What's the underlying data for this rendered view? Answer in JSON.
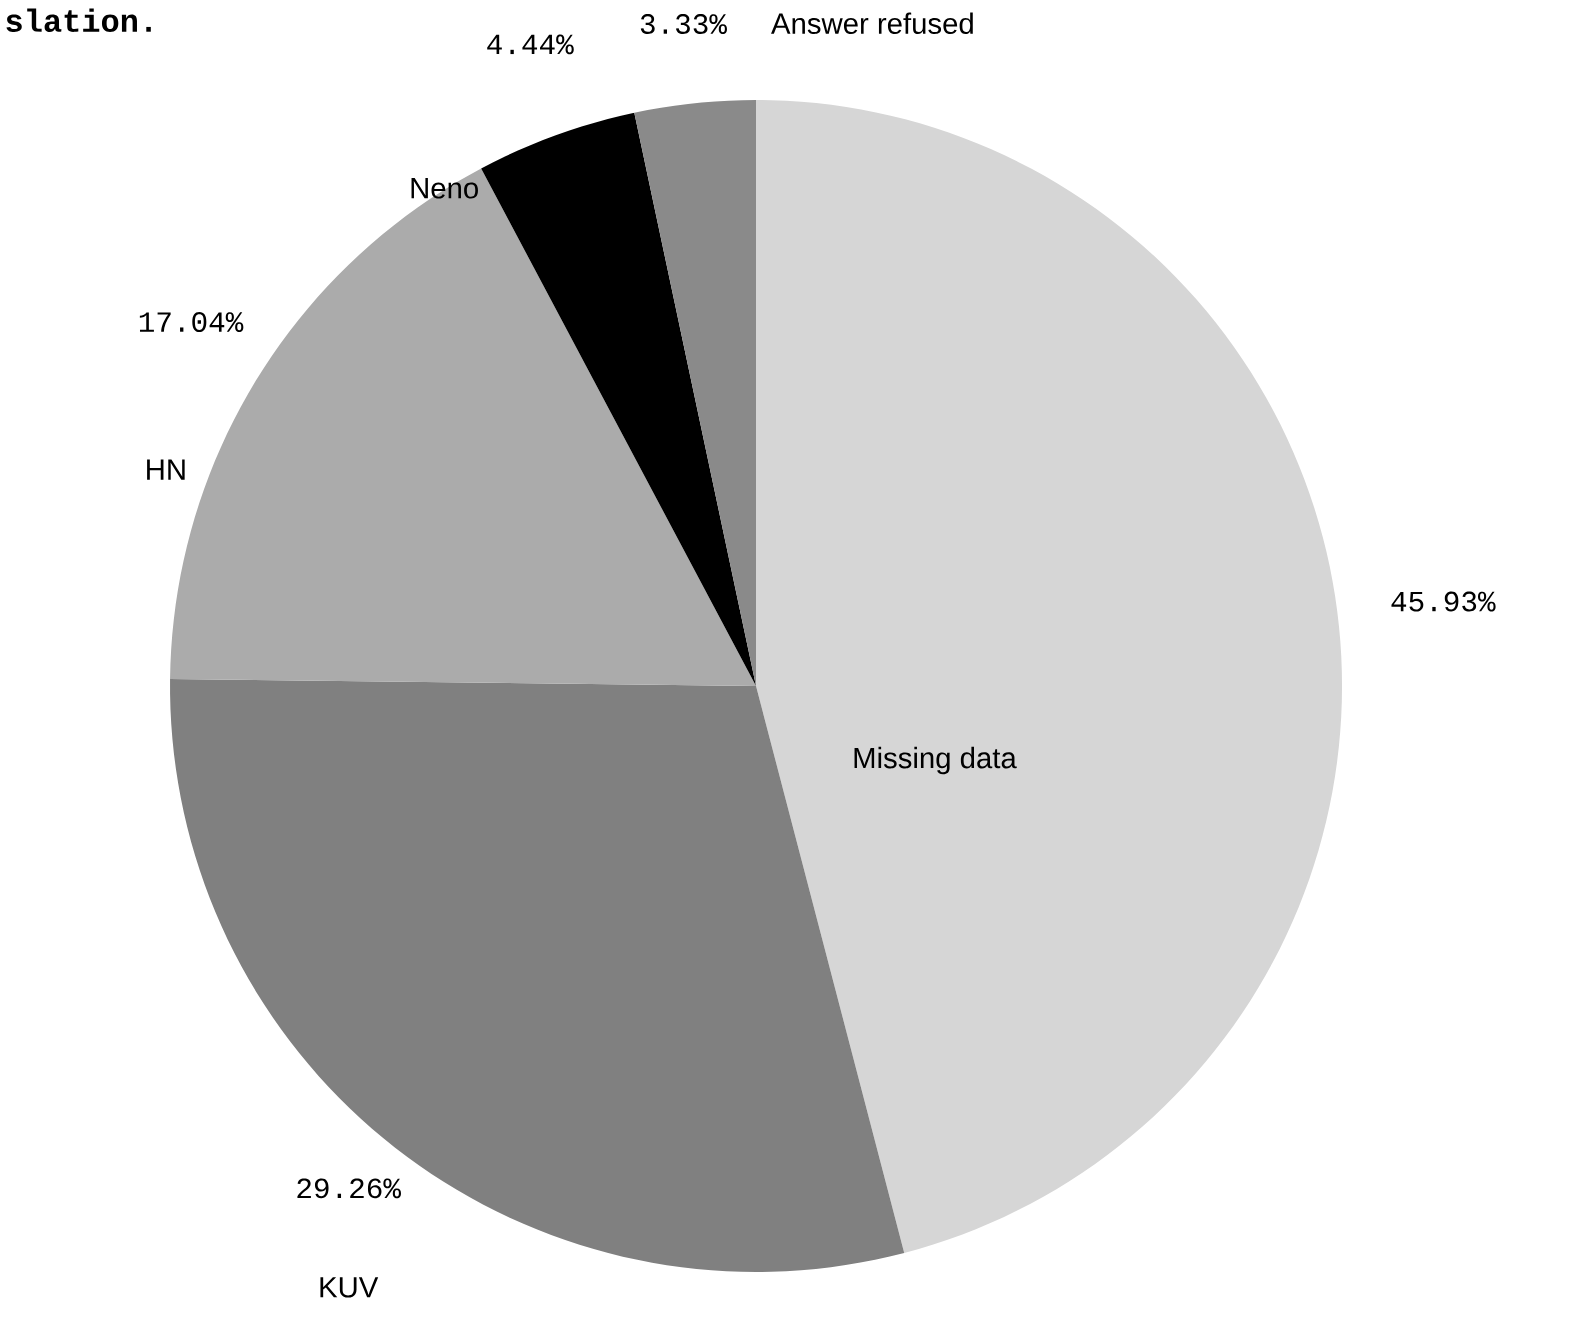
{
  "chart_data": {
    "type": "pie",
    "categories": [
      "Missing data",
      "KUV",
      "HN",
      "Neno",
      "Answer refused"
    ],
    "values": [
      45.93,
      29.26,
      17.04,
      4.44,
      3.33
    ],
    "value_labels": [
      "45.93%",
      "29.26%",
      "17.04%",
      "4.44%",
      "3.33%"
    ],
    "colors": [
      "#d6d6d6",
      "#808080",
      "#ababab",
      "#000000",
      "#8a8a8a"
    ],
    "annotations": [
      "slation."
    ]
  }
}
